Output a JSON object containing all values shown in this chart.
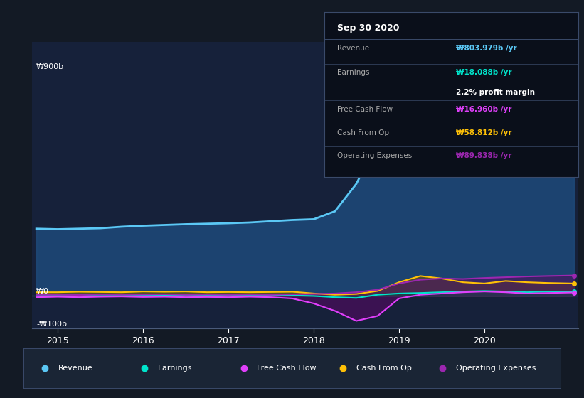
{
  "bg_color": "#131a25",
  "plot_bg_color": "#16213a",
  "grid_color": "#2a3a5a",
  "ylabel_900": "₩900b",
  "ylabel_0": "₩0",
  "ylabel_neg100": "-₩100b",
  "x_ticks": [
    2015,
    2016,
    2017,
    2018,
    2019,
    2020
  ],
  "xlim": [
    2014.7,
    2021.1
  ],
  "ylim": [
    -130,
    1020
  ],
  "revenue_color": "#5bc8f5",
  "revenue_fill": "#1e4a7a",
  "earnings_color": "#00e5cc",
  "fcf_color": "#e040fb",
  "cashop_color": "#ffc107",
  "opex_color": "#9c27b0",
  "legend_bg": "#1a2535",
  "legend_border": "#3a4a6a",
  "tooltip_bg": "#0a0f1a",
  "tooltip_border": "#3a4a6a",
  "revenue": {
    "x": [
      2014.75,
      2015.0,
      2015.25,
      2015.5,
      2015.75,
      2016.0,
      2016.25,
      2016.5,
      2016.75,
      2017.0,
      2017.25,
      2017.5,
      2017.75,
      2018.0,
      2018.25,
      2018.5,
      2018.75,
      2019.0,
      2019.25,
      2019.5,
      2019.75,
      2020.0,
      2020.25,
      2020.5,
      2020.75,
      2021.05
    ],
    "y": [
      270,
      268,
      270,
      272,
      278,
      282,
      285,
      288,
      290,
      292,
      295,
      300,
      305,
      308,
      340,
      450,
      620,
      820,
      870,
      880,
      850,
      820,
      790,
      770,
      760,
      755
    ]
  },
  "earnings": {
    "x": [
      2014.75,
      2015.0,
      2015.25,
      2015.5,
      2015.75,
      2016.0,
      2016.25,
      2016.5,
      2016.75,
      2017.0,
      2017.25,
      2017.5,
      2017.75,
      2018.0,
      2018.25,
      2018.5,
      2018.75,
      2019.0,
      2019.25,
      2019.5,
      2019.75,
      2020.0,
      2020.25,
      2020.5,
      2020.75,
      2021.05
    ],
    "y": [
      5,
      4,
      3,
      5,
      4,
      3,
      2,
      4,
      3,
      2,
      3,
      4,
      2,
      0,
      -5,
      -8,
      5,
      10,
      12,
      15,
      18,
      20,
      18,
      15,
      18,
      17
    ]
  },
  "fcf": {
    "x": [
      2014.75,
      2015.0,
      2015.25,
      2015.5,
      2015.75,
      2016.0,
      2016.25,
      2016.5,
      2016.75,
      2017.0,
      2017.25,
      2017.5,
      2017.75,
      2018.0,
      2018.25,
      2018.5,
      2018.75,
      2019.0,
      2019.25,
      2019.5,
      2019.75,
      2020.0,
      2020.25,
      2020.5,
      2020.75,
      2021.05
    ],
    "y": [
      -5,
      -3,
      -5,
      -3,
      -2,
      -4,
      -3,
      -5,
      -4,
      -5,
      -3,
      -5,
      -10,
      -30,
      -60,
      -100,
      -80,
      -10,
      5,
      10,
      15,
      18,
      15,
      10,
      12,
      14
    ]
  },
  "cashop": {
    "x": [
      2014.75,
      2015.0,
      2015.25,
      2015.5,
      2015.75,
      2016.0,
      2016.25,
      2016.5,
      2016.75,
      2017.0,
      2017.25,
      2017.5,
      2017.75,
      2018.0,
      2018.25,
      2018.5,
      2018.75,
      2019.0,
      2019.25,
      2019.5,
      2019.75,
      2020.0,
      2020.25,
      2020.5,
      2020.75,
      2021.05
    ],
    "y": [
      15,
      15,
      17,
      16,
      15,
      18,
      17,
      18,
      15,
      16,
      15,
      16,
      17,
      10,
      5,
      8,
      20,
      55,
      80,
      70,
      55,
      50,
      60,
      55,
      52,
      50
    ]
  },
  "opex": {
    "x": [
      2014.75,
      2015.0,
      2015.25,
      2015.5,
      2015.75,
      2016.0,
      2016.25,
      2016.5,
      2016.75,
      2017.0,
      2017.25,
      2017.5,
      2017.75,
      2018.0,
      2018.25,
      2018.5,
      2018.75,
      2019.0,
      2019.25,
      2019.5,
      2019.75,
      2020.0,
      2020.25,
      2020.5,
      2020.75,
      2021.05
    ],
    "y": [
      5,
      5,
      4,
      6,
      5,
      6,
      7,
      5,
      6,
      5,
      6,
      5,
      7,
      8,
      10,
      15,
      25,
      50,
      65,
      70,
      68,
      72,
      75,
      78,
      80,
      82
    ]
  },
  "tooltip": {
    "date": "Sep 30 2020",
    "revenue_label": "Revenue",
    "revenue_value": "₩803.979b /yr",
    "revenue_color": "#5bc8f5",
    "earnings_label": "Earnings",
    "earnings_value": "₩18.088b /yr",
    "earnings_color": "#00e5cc",
    "margin_text": "2.2% profit margin",
    "fcf_label": "Free Cash Flow",
    "fcf_value": "₩16.960b /yr",
    "fcf_color": "#e040fb",
    "cashop_label": "Cash From Op",
    "cashop_value": "₩58.812b /yr",
    "cashop_color": "#ffc107",
    "opex_label": "Operating Expenses",
    "opex_value": "₩89.838b /yr",
    "opex_color": "#9c27b0"
  },
  "legend_items": [
    {
      "color": "#5bc8f5",
      "label": "Revenue"
    },
    {
      "color": "#00e5cc",
      "label": "Earnings"
    },
    {
      "color": "#e040fb",
      "label": "Free Cash Flow"
    },
    {
      "color": "#ffc107",
      "label": "Cash From Op"
    },
    {
      "color": "#9c27b0",
      "label": "Operating Expenses"
    }
  ]
}
